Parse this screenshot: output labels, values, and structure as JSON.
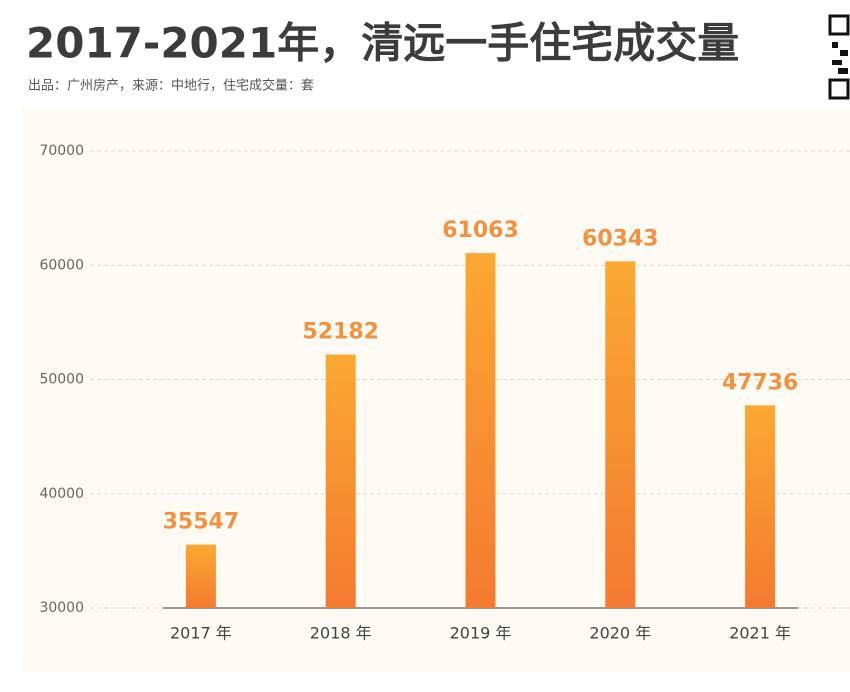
{
  "chart_data": {
    "type": "bar",
    "title": "2017-2021年，清远一手住宅成交量",
    "subtitle": "出品：广州房产，来源：中地行，住宅成交量：套",
    "categories": [
      "2017 年",
      "2018 年",
      "2019 年",
      "2020 年",
      "2021 年"
    ],
    "values": [
      35547,
      52182,
      61063,
      60343,
      47736
    ],
    "color": "#f6903a",
    "ylim": [
      30000,
      70000
    ],
    "yticks": [
      30000,
      40000,
      50000,
      60000,
      70000
    ],
    "grid": true
  }
}
